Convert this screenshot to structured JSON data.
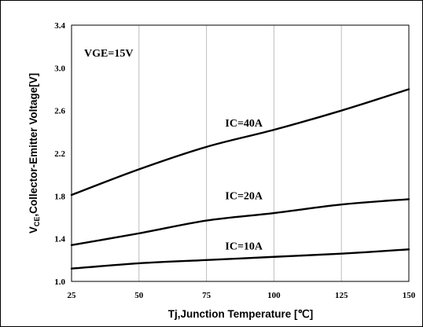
{
  "chart_data": {
    "type": "line",
    "xlabel": "Tj,Junction Temperature [℃]",
    "ylabel": {
      "main": "V",
      "subscript": "CE",
      "rest": ",Collector-Emitter Voltage[V]"
    },
    "xlim": [
      25,
      150
    ],
    "ylim": [
      1.0,
      3.4
    ],
    "xticks": [
      25,
      50,
      75,
      100,
      125,
      150
    ],
    "yticks": [
      "1.0",
      "1.4",
      "1.8",
      "2.2",
      "2.6",
      "3.0",
      "3.4"
    ],
    "grid": "vertical",
    "annotation": "VGE=15V",
    "series": [
      {
        "name": "IC=40A",
        "x": [
          25,
          50,
          75,
          100,
          125,
          150
        ],
        "y": [
          1.81,
          2.05,
          2.26,
          2.42,
          2.6,
          2.8
        ]
      },
      {
        "name": "IC=20A",
        "x": [
          25,
          50,
          75,
          100,
          125,
          150
        ],
        "y": [
          1.34,
          1.45,
          1.57,
          1.64,
          1.72,
          1.77
        ]
      },
      {
        "name": "IC=10A",
        "x": [
          25,
          50,
          75,
          100,
          125,
          150
        ],
        "y": [
          1.12,
          1.17,
          1.2,
          1.23,
          1.26,
          1.3
        ]
      }
    ]
  }
}
